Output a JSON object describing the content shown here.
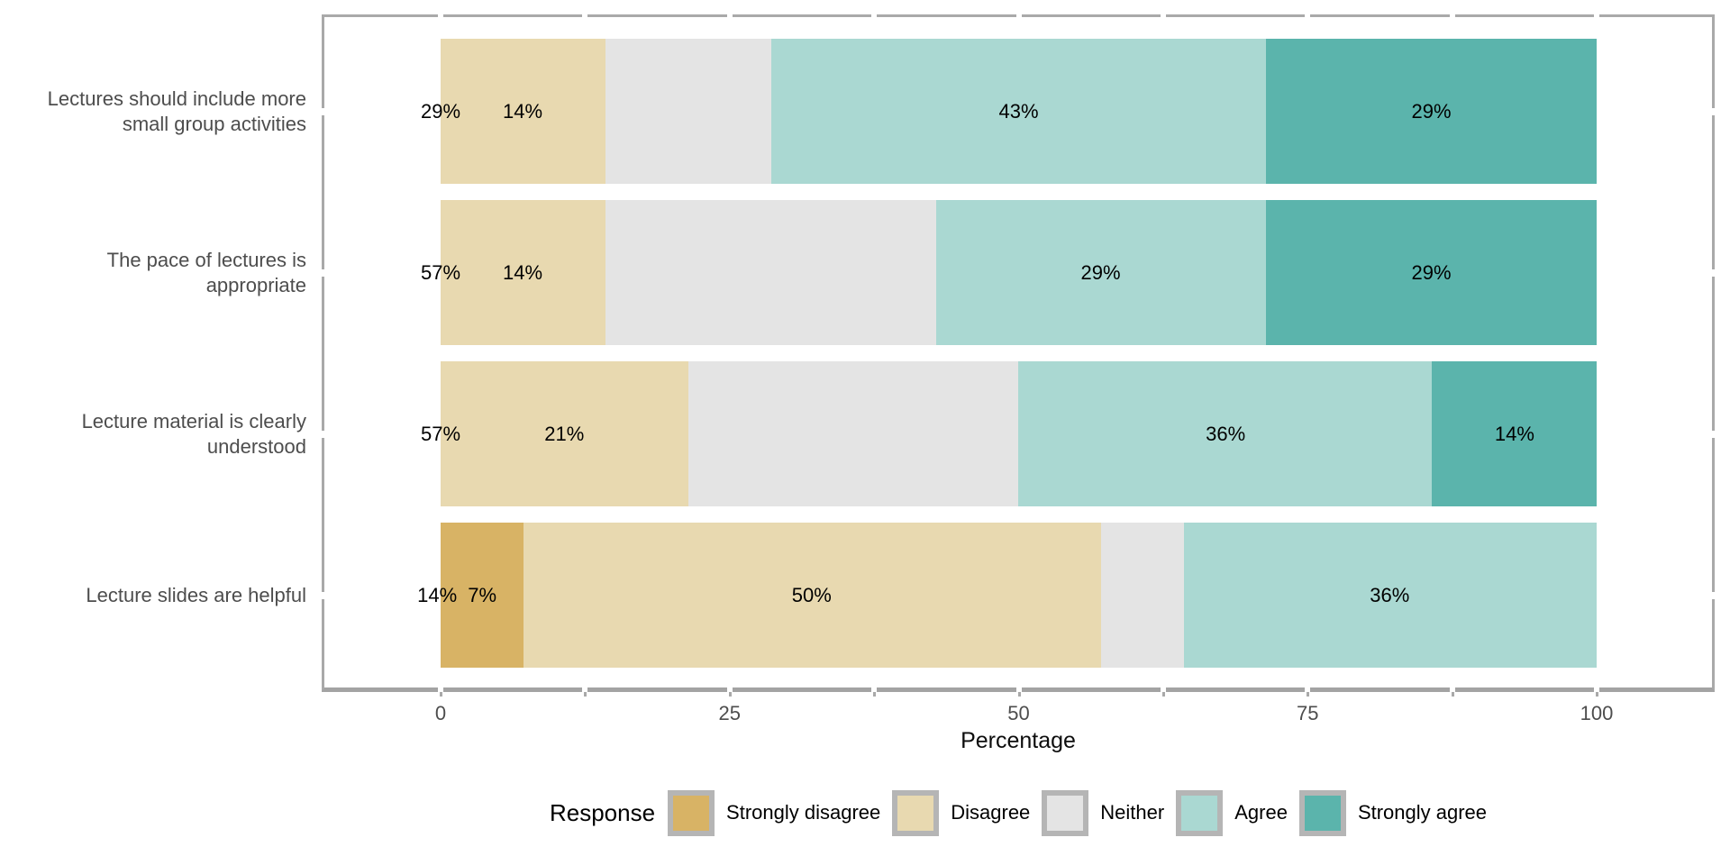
{
  "chart_data": {
    "type": "bar",
    "subtype": "horizontal_percent_stacked",
    "title": "",
    "x_axis": {
      "label": "Percentage",
      "range": [
        0,
        100
      ],
      "major_ticks": [
        0,
        25,
        50,
        75,
        100
      ],
      "minor_ticks": [
        12.5,
        37.5,
        62.5,
        87.5
      ],
      "grid": false
    },
    "legend": {
      "title": "Response",
      "position": "bottom"
    },
    "categories": [
      {
        "lines": [
          "Lectures should include more",
          "small group activities"
        ]
      },
      {
        "lines": [
          "The pace of lectures is",
          "appropriate"
        ]
      },
      {
        "lines": [
          "Lecture material is clearly",
          "understood"
        ]
      },
      {
        "lines": [
          "Lecture slides are helpful"
        ]
      }
    ],
    "series": [
      {
        "name": "Strongly disagree",
        "color": "#d8b365",
        "values": [
          0,
          0,
          0,
          7.143
        ]
      },
      {
        "name": "Disagree",
        "color": "#e8d9b0",
        "values": [
          14.286,
          14.286,
          21.429,
          50
        ]
      },
      {
        "name": "Neither",
        "color": "#e4e4e4",
        "values": [
          14.286,
          28.571,
          28.571,
          7.143
        ]
      },
      {
        "name": "Agree",
        "color": "#aad8d2",
        "values": [
          42.857,
          28.571,
          35.714,
          35.714
        ]
      },
      {
        "name": "Strongly agree",
        "color": "#5bb4ac",
        "values": [
          28.571,
          28.571,
          14.286,
          0
        ]
      }
    ],
    "bar_labels": [
      [
        {
          "text": "29%",
          "x": 0
        },
        {
          "text": "14%",
          "x": 7.1
        },
        {
          "text": "43%",
          "x": 50
        },
        {
          "text": "29%",
          "x": 85.7
        }
      ],
      [
        {
          "text": "57%",
          "x": 0
        },
        {
          "text": "14%",
          "x": 7.1
        },
        {
          "text": "29%",
          "x": 57.1
        },
        {
          "text": "29%",
          "x": 85.7
        }
      ],
      [
        {
          "text": "57%",
          "x": 0
        },
        {
          "text": "21%",
          "x": 10.7
        },
        {
          "text": "36%",
          "x": 67.9
        },
        {
          "text": "14%",
          "x": 92.9
        }
      ],
      [
        {
          "text": "14%",
          "x": -0.3
        },
        {
          "text": "7%",
          "x": 3.6
        },
        {
          "text": "50%",
          "x": 32.1
        },
        {
          "text": "36%",
          "x": 82.1
        }
      ]
    ]
  },
  "colors": {
    "panel_border": "#a9a9a9",
    "axis_text": "#4d4d4d",
    "bar_label_text": "#000000",
    "legend_key_border": "#b5b5b5",
    "background": "#ffffff"
  }
}
